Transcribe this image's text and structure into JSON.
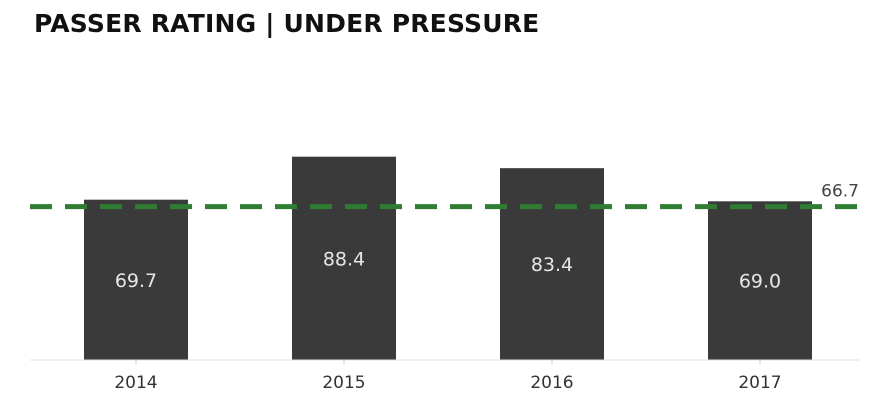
{
  "chart_data": {
    "type": "bar",
    "title": "PASSER RATING | UNDER PRESSURE",
    "categories": [
      "2014",
      "2015",
      "2016",
      "2017"
    ],
    "values": [
      69.7,
      88.4,
      83.4,
      69.0
    ],
    "value_labels": [
      "69.7",
      "88.4",
      "83.4",
      "69.0"
    ],
    "reference_line": {
      "value": 66.7,
      "label": "66.7",
      "style": "dashed"
    },
    "ylim": [
      0,
      100
    ],
    "grid": false,
    "legend": "none",
    "colors": {
      "bar": "#3a3a3a",
      "bar_label": "#e6e6e6",
      "reference": "#2e7d32",
      "baseline": "#e3e3e3"
    }
  }
}
